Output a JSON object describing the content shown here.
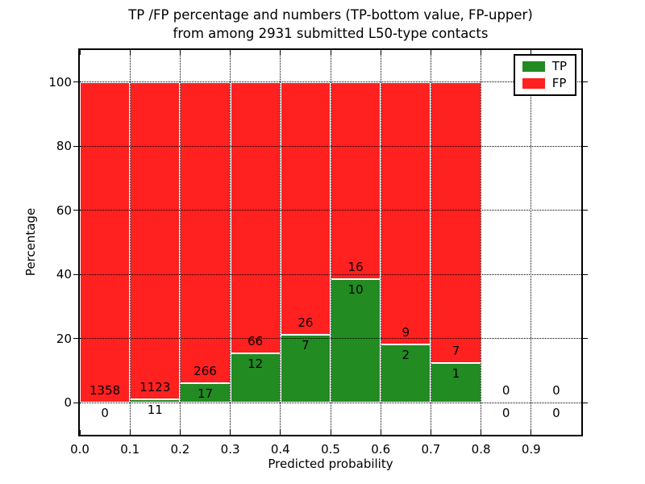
{
  "chart_data": {
    "type": "bar",
    "stacked": true,
    "title_line1": "TP /FP percentage and numbers (TP-bottom value, FP-upper)",
    "title_line2": "from among 2931 submitted L50-type contacts",
    "xlabel": "Predicted probability",
    "ylabel": "Percentage",
    "total_submitted_contacts": 2931,
    "x_bin_width": 0.1,
    "xlim": [
      0.0,
      1.0
    ],
    "ylim": [
      -10,
      110
    ],
    "xtick_labels": [
      "0.0",
      "0.1",
      "0.2",
      "0.3",
      "0.4",
      "0.5",
      "0.6",
      "0.7",
      "0.8",
      "0.9"
    ],
    "ytick_values": [
      0,
      20,
      40,
      60,
      80,
      100
    ],
    "legend": {
      "position": "upper-right",
      "entries": [
        {
          "label": "TP",
          "color": "#228B22"
        },
        {
          "label": "FP",
          "color": "#FF2020"
        }
      ]
    },
    "bins": [
      {
        "x_start": 0.0,
        "x_end": 0.1,
        "tp_count": 0,
        "fp_count": 1358
      },
      {
        "x_start": 0.1,
        "x_end": 0.2,
        "tp_count": 11,
        "fp_count": 1123
      },
      {
        "x_start": 0.2,
        "x_end": 0.3,
        "tp_count": 17,
        "fp_count": 266
      },
      {
        "x_start": 0.3,
        "x_end": 0.4,
        "tp_count": 12,
        "fp_count": 66
      },
      {
        "x_start": 0.4,
        "x_end": 0.5,
        "tp_count": 7,
        "fp_count": 26
      },
      {
        "x_start": 0.5,
        "x_end": 0.6,
        "tp_count": 10,
        "fp_count": 16
      },
      {
        "x_start": 0.6,
        "x_end": 0.7,
        "tp_count": 2,
        "fp_count": 9
      },
      {
        "x_start": 0.7,
        "x_end": 0.8,
        "tp_count": 1,
        "fp_count": 7
      },
      {
        "x_start": 0.8,
        "x_end": 0.9,
        "tp_count": 0,
        "fp_count": 0
      },
      {
        "x_start": 0.9,
        "x_end": 1.0,
        "tp_count": 0,
        "fp_count": 0
      }
    ]
  }
}
